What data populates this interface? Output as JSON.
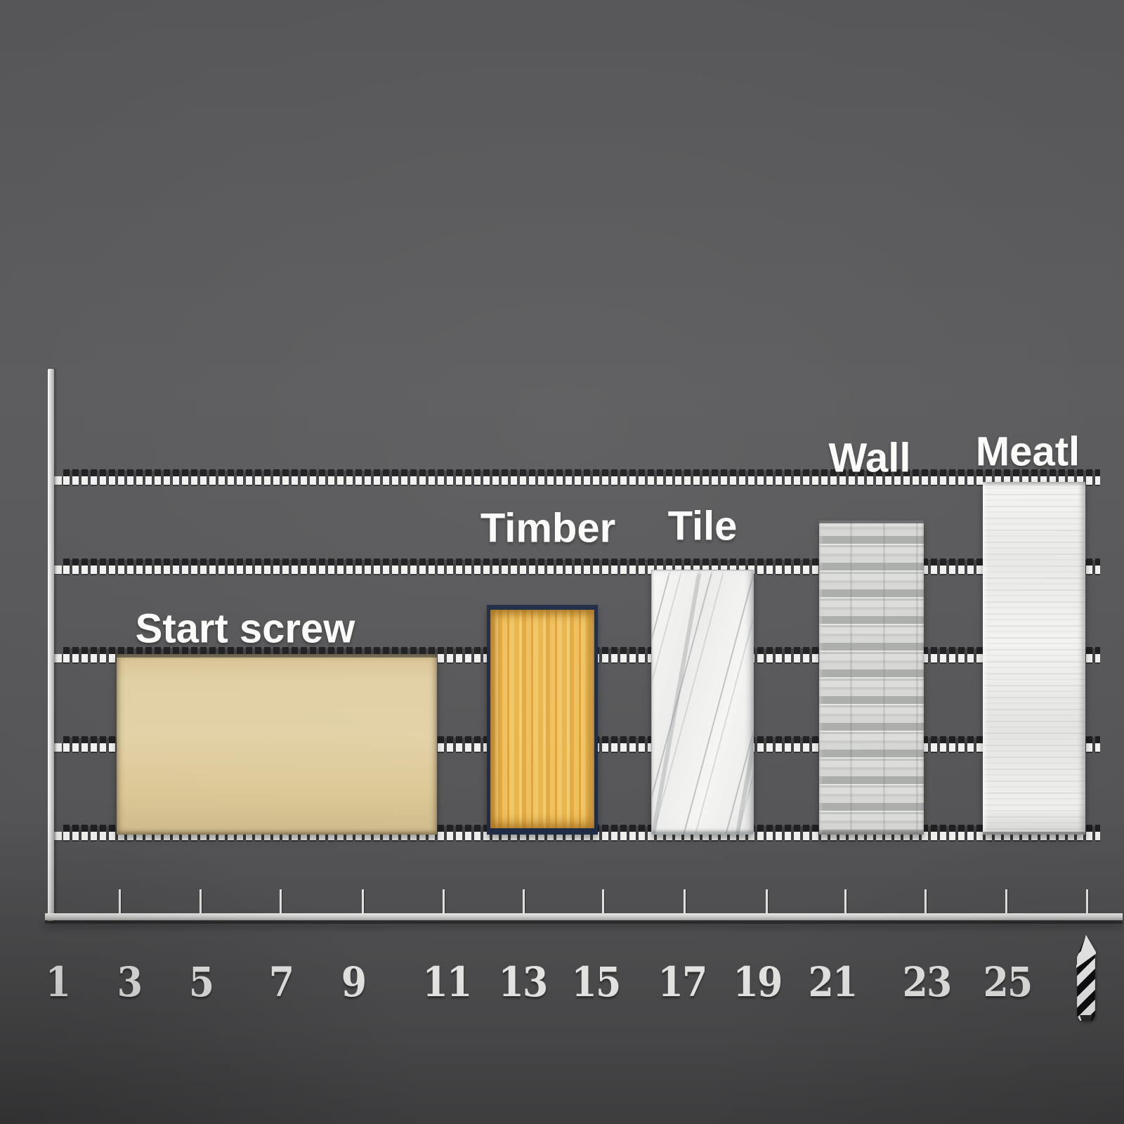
{
  "chart_data": {
    "type": "bar",
    "title": "",
    "xlabel": "",
    "ylabel": "",
    "categories": [
      "Start screw",
      "Timber",
      "Tile",
      "Wall",
      "Meatl"
    ],
    "values": [
      2.0,
      2.55,
      2.95,
      3.5,
      3.94
    ],
    "value_units": "y-gridline units (no y tick labels shown)",
    "x_bar_ranges": [
      [
        2.5,
        10.6
      ],
      [
        11.85,
        14.65
      ],
      [
        16.0,
        18.6
      ],
      [
        20.25,
        22.9
      ],
      [
        24.4,
        27.0
      ]
    ],
    "x_tick_labels": [
      "1",
      "3",
      "5",
      "7",
      "9",
      "11",
      "13",
      "15",
      "17",
      "19",
      "21",
      "23",
      "25"
    ],
    "xlim": [
      1,
      27.5
    ],
    "ylim": [
      0,
      4.7
    ],
    "y_gridlines": [
      0,
      1,
      2,
      3,
      4
    ],
    "gridline_style": "horizontal dashed film-strip (black caps over white dashes)",
    "legend": "none",
    "bar_textures": [
      "sand-plain",
      "wood-grain",
      "marble",
      "brick-courses",
      "brushed-metal"
    ],
    "x_axis_end_icon": "drill-bit"
  },
  "colors": {
    "background": "#58585a",
    "axis": "#d8d8d6",
    "grid_dash_white": "#f1f1ef",
    "grid_dash_black": "#1e1e20",
    "text": "#f5f5f3",
    "bar_sand": "#e0cda2",
    "bar_wood": "#eab64e",
    "bar_wood_border": "#1d2a44",
    "bar_marble": "#f4f4f2",
    "bar_brick_light": "#d7d7d5",
    "bar_brick_dark": "#abadab",
    "bar_metal": "#ebebe9",
    "drill_white": "#fdfdfd",
    "drill_black": "#101012"
  }
}
